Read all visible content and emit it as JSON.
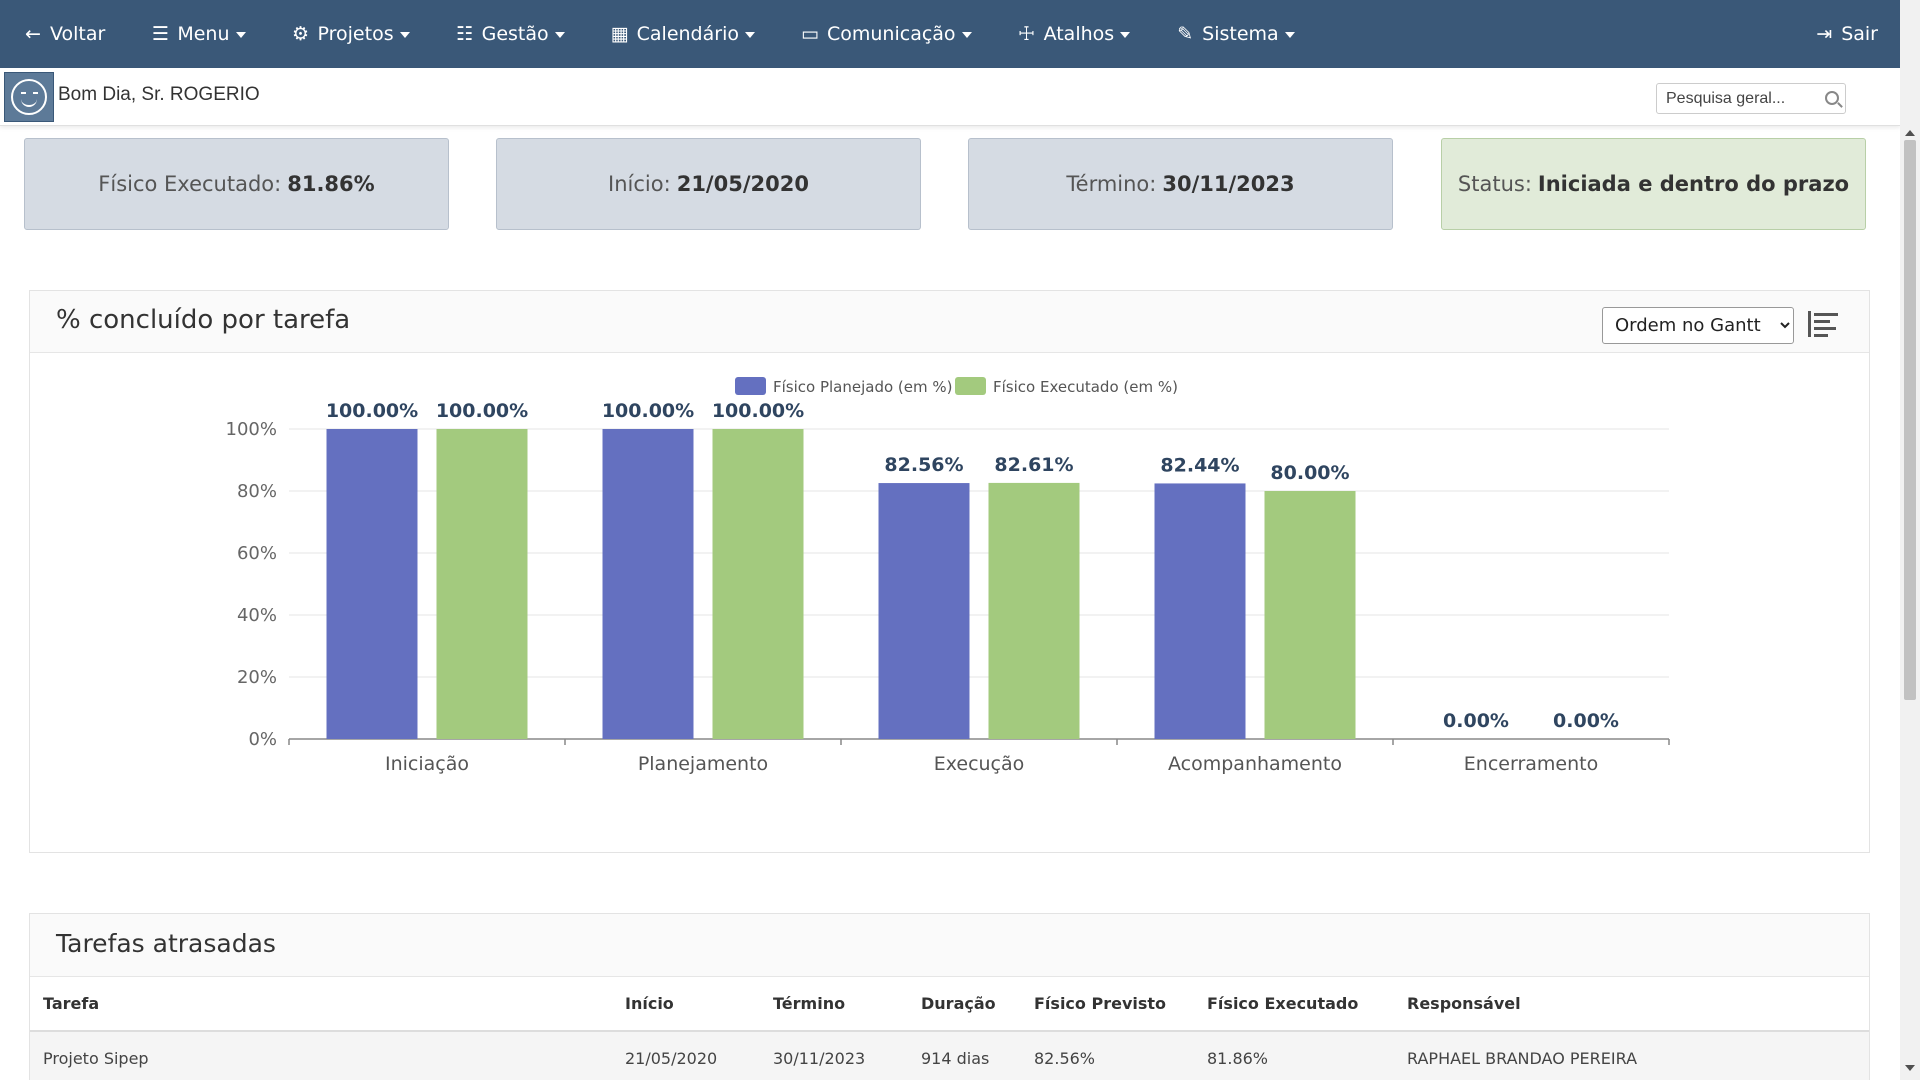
{
  "nav": {
    "items": [
      {
        "label": "Voltar",
        "icon": "arrow-left-icon",
        "glyph": "←",
        "caret": false
      },
      {
        "label": "Menu",
        "icon": "hamburger-icon",
        "glyph": "☰",
        "caret": true
      },
      {
        "label": "Projetos",
        "icon": "projects-icon",
        "glyph": "⚙",
        "caret": true
      },
      {
        "label": "Gestão",
        "icon": "checklist-icon",
        "glyph": "☷",
        "caret": true
      },
      {
        "label": "Calendário",
        "icon": "calendar-icon",
        "glyph": "▦",
        "caret": true
      },
      {
        "label": "Comunicação",
        "icon": "comment-icon",
        "glyph": "▭",
        "caret": true
      },
      {
        "label": "Atalhos",
        "icon": "signpost-icon",
        "glyph": "☩",
        "caret": true
      },
      {
        "label": "Sistema",
        "icon": "wrench-icon",
        "glyph": "✎",
        "caret": true
      }
    ],
    "logout": {
      "label": "Sair",
      "icon": "sign-out-icon",
      "glyph": "⇥"
    }
  },
  "user": {
    "greeting": "Bom Dia, Sr. ROGERIO"
  },
  "search": {
    "placeholder": "Pesquisa geral..."
  },
  "cards": {
    "fisico_label": "Físico Executado:",
    "fisico_value": "81.86%",
    "inicio_label": "Início:",
    "inicio_value": "21/05/2020",
    "termino_label": "Término:",
    "termino_value": "30/11/2023",
    "status_label": "Status:",
    "status_value": "Iniciada e dentro do prazo"
  },
  "chart_panel": {
    "title": "% concluído por tarefa",
    "order_options": [
      "Ordem no Gantt"
    ],
    "order_selected": "Ordem no Gantt"
  },
  "chart_data": {
    "type": "bar",
    "categories": [
      "Iniciação",
      "Planejamento",
      "Execução",
      "Acompanhamento",
      "Encerramento"
    ],
    "series": [
      {
        "name": "Físico Planejado (em %)",
        "color": "#6470c0",
        "values": [
          100.0,
          100.0,
          82.56,
          82.44,
          0.0
        ]
      },
      {
        "name": "Físico Executado (em %)",
        "color": "#a3ca7e",
        "values": [
          100.0,
          100.0,
          82.61,
          80.0,
          0.0
        ]
      }
    ],
    "ylim": [
      0,
      100
    ],
    "yticks": [
      "0%",
      "20%",
      "40%",
      "60%",
      "80%",
      "100%"
    ],
    "grid": true,
    "legend": "top-center",
    "value_label_color": "#2f4560"
  },
  "tasks_panel": {
    "title": "Tarefas atrasadas",
    "columns": [
      "Tarefa",
      "Início",
      "Término",
      "Duração",
      "Físico Previsto",
      "Físico Executado",
      "Responsável"
    ],
    "rows": [
      [
        "Projeto Sipep",
        "21/05/2020",
        "30/11/2023",
        "914 dias",
        "82.56%",
        "81.86%",
        "RAPHAEL BRANDAO PEREIRA"
      ]
    ]
  }
}
